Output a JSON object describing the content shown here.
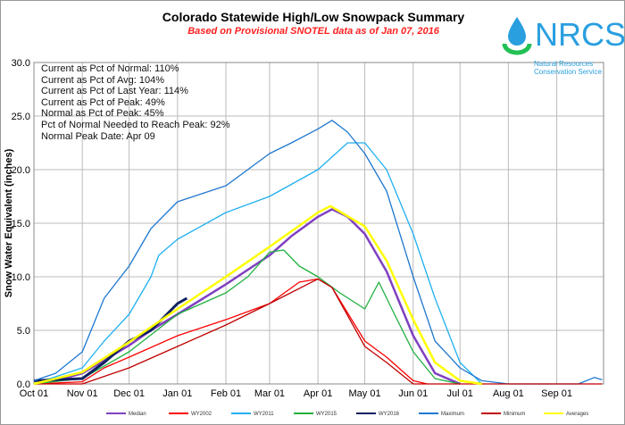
{
  "chart_data": {
    "type": "line",
    "title": "Colorado Statewide High/Low Snowpack Summary",
    "subtitle": "Based on Provisional SNOTEL data as of Jan 07, 2016",
    "ylabel": "Snow Water Equivalent (inches)",
    "xlabel": "",
    "ylim": [
      0,
      30
    ],
    "yticks": [
      "0.0",
      "5.0",
      "10.0",
      "15.0",
      "20.0",
      "25.0",
      "30.0"
    ],
    "xticks": [
      "Oct 01",
      "Nov 01",
      "Dec 01",
      "Jan 01",
      "Feb 01",
      "Mar 01",
      "Apr 01",
      "May 01",
      "Jun 01",
      "Jul 01",
      "Aug 01",
      "Sep 01"
    ],
    "grid": true,
    "legend_position": "bottom",
    "stats": [
      "Current  as Pct of Normal: 110%",
      "Current  as Pct of Avg: 104%",
      "Current  as Pct of Last Year: 114%",
      "Current  as Pct of Peak: 49%",
      "Normal  as Pct of Peak: 45%",
      "Pct of Normal Needed  to Reach Peak: 92%",
      "Normal  Peak Date: Apr 09"
    ],
    "series": [
      {
        "name": "Median",
        "color": "#8040c0",
        "points": [
          [
            "Oct 01",
            0
          ],
          [
            "Oct 15",
            0.3
          ],
          [
            "Nov 01",
            1.0
          ],
          [
            "Nov 15",
            2.2
          ],
          [
            "Dec 01",
            3.6
          ],
          [
            "Dec 15",
            5.0
          ],
          [
            "Jan 01",
            6.5
          ],
          [
            "Feb 01",
            9.3
          ],
          [
            "Mar 01",
            12.0
          ],
          [
            "Mar 15",
            13.8
          ],
          [
            "Apr 01",
            15.6
          ],
          [
            "Apr 10",
            16.3
          ],
          [
            "Apr 20",
            15.6
          ],
          [
            "May 01",
            14.0
          ],
          [
            "May 15",
            10.5
          ],
          [
            "Jun 01",
            4.5
          ],
          [
            "Jun 15",
            1.0
          ],
          [
            "Jul 01",
            0
          ]
        ]
      },
      {
        "name": "WY2002",
        "color": "#ff0000",
        "points": [
          [
            "Oct 01",
            0
          ],
          [
            "Nov 01",
            0.2
          ],
          [
            "Nov 15",
            1.5
          ],
          [
            "Dec 01",
            2.5
          ],
          [
            "Jan 01",
            4.5
          ],
          [
            "Feb 01",
            6.0
          ],
          [
            "Mar 01",
            7.5
          ],
          [
            "Mar 20",
            9.5
          ],
          [
            "Apr 01",
            9.8
          ],
          [
            "Apr 10",
            9.0
          ],
          [
            "May 01",
            4.0
          ],
          [
            "May 15",
            2.5
          ],
          [
            "Jun 01",
            0.3
          ],
          [
            "Jun 10",
            0
          ]
        ]
      },
      {
        "name": "WY2011",
        "color": "#20b0f0",
        "points": [
          [
            "Oct 01",
            0
          ],
          [
            "Nov 01",
            1.5
          ],
          [
            "Nov 15",
            4.0
          ],
          [
            "Dec 01",
            6.5
          ],
          [
            "Dec 15",
            10.0
          ],
          [
            "Dec 20",
            12.0
          ],
          [
            "Jan 01",
            13.5
          ],
          [
            "Feb 01",
            16.0
          ],
          [
            "Mar 01",
            17.5
          ],
          [
            "Apr 01",
            20.0
          ],
          [
            "Apr 20",
            22.5
          ],
          [
            "May 01",
            22.5
          ],
          [
            "May 15",
            20.0
          ],
          [
            "Jun 01",
            14.0
          ],
          [
            "Jun 15",
            8.0
          ],
          [
            "Jul 01",
            2.0
          ],
          [
            "Jul 15",
            0
          ]
        ]
      },
      {
        "name": "WY2015",
        "color": "#20b040",
        "points": [
          [
            "Oct 01",
            0
          ],
          [
            "Nov 01",
            0.5
          ],
          [
            "Dec 01",
            3.0
          ],
          [
            "Jan 01",
            6.5
          ],
          [
            "Feb 01",
            8.5
          ],
          [
            "Feb 15",
            10.0
          ],
          [
            "Mar 01",
            12.3
          ],
          [
            "Mar 10",
            12.5
          ],
          [
            "Mar 20",
            11.0
          ],
          [
            "Apr 01",
            10.0
          ],
          [
            "Apr 15",
            8.5
          ],
          [
            "May 01",
            7.0
          ],
          [
            "May 10",
            9.5
          ],
          [
            "May 20",
            6.5
          ],
          [
            "Jun 01",
            3.0
          ],
          [
            "Jun 15",
            0.5
          ],
          [
            "Jul 01",
            0
          ]
        ]
      },
      {
        "name": "WY2016",
        "color": "#102060",
        "points": [
          [
            "Oct 01",
            0.3
          ],
          [
            "Nov 01",
            0.5
          ],
          [
            "Nov 15",
            2.0
          ],
          [
            "Dec 01",
            4.0
          ],
          [
            "Dec 15",
            5.0
          ],
          [
            "Jan 01",
            7.5
          ],
          [
            "Jan 07",
            8.0
          ]
        ]
      },
      {
        "name": "Maximum",
        "color": "#1e78d0",
        "points": [
          [
            "Oct 01",
            0.3
          ],
          [
            "Oct 15",
            1.0
          ],
          [
            "Nov 01",
            3.0
          ],
          [
            "Nov 15",
            8.0
          ],
          [
            "Dec 01",
            11.0
          ],
          [
            "Dec 15",
            14.5
          ],
          [
            "Jan 01",
            17.0
          ],
          [
            "Feb 01",
            18.5
          ],
          [
            "Feb 15",
            20.0
          ],
          [
            "Mar 01",
            21.5
          ],
          [
            "Mar 15",
            22.5
          ],
          [
            "Apr 01",
            23.8
          ],
          [
            "Apr 10",
            24.6
          ],
          [
            "Apr 20",
            23.5
          ],
          [
            "May 01",
            21.5
          ],
          [
            "May 15",
            18.0
          ],
          [
            "Jun 01",
            10.0
          ],
          [
            "Jun 15",
            4.0
          ],
          [
            "Jul 01",
            1.5
          ],
          [
            "Jul 15",
            0.3
          ],
          [
            "Aug 01",
            0
          ],
          [
            "Sep 15",
            0
          ],
          [
            "Sep 25",
            0.6
          ],
          [
            "Sep 30",
            0.4
          ]
        ]
      },
      {
        "name": "Minimum",
        "color": "#c00000",
        "points": [
          [
            "Oct 01",
            0
          ],
          [
            "Nov 01",
            0
          ],
          [
            "Dec 01",
            1.5
          ],
          [
            "Jan 01",
            3.5
          ],
          [
            "Feb 01",
            5.5
          ],
          [
            "Mar 01",
            7.5
          ],
          [
            "Apr 01",
            9.8
          ],
          [
            "Apr 10",
            9.0
          ],
          [
            "May 01",
            3.5
          ],
          [
            "May 15",
            2.0
          ],
          [
            "Jun 01",
            0
          ],
          [
            "Sep 30",
            0
          ]
        ]
      },
      {
        "name": "Averages",
        "color": "#ffff00",
        "points": [
          [
            "Oct 01",
            0
          ],
          [
            "Nov 01",
            1.1
          ],
          [
            "Dec 01",
            3.9
          ],
          [
            "Jan 01",
            7.0
          ],
          [
            "Feb 01",
            10.0
          ],
          [
            "Mar 01",
            12.8
          ],
          [
            "Apr 01",
            16.0
          ],
          [
            "Apr 09",
            16.6
          ],
          [
            "May 01",
            14.7
          ],
          [
            "May 15",
            11.5
          ],
          [
            "Jun 01",
            6.0
          ],
          [
            "Jun 15",
            2.0
          ],
          [
            "Jul 01",
            0.3
          ],
          [
            "Jul 15",
            0
          ]
        ]
      }
    ]
  },
  "logo": {
    "name": "NRCS",
    "line1": "Natural Resources",
    "line2": "Conservation Service"
  }
}
